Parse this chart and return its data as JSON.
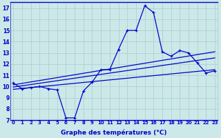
{
  "xlabel": "Graphe des températures (°C)",
  "background_color": "#cce8e8",
  "line_color": "#0000cc",
  "x_hours": [
    0,
    1,
    2,
    3,
    4,
    5,
    6,
    7,
    8,
    9,
    10,
    11,
    12,
    13,
    14,
    15,
    16,
    17,
    18,
    19,
    20,
    21,
    22,
    23
  ],
  "temp_main": [
    10.3,
    9.8,
    9.9,
    10.0,
    9.8,
    9.7,
    7.2,
    7.2,
    9.6,
    10.4,
    11.5,
    11.5,
    13.3,
    15.0,
    15.0,
    17.2,
    16.6,
    13.1,
    12.7,
    13.2,
    13.0,
    12.1,
    11.2,
    11.4
  ],
  "trend1_x": [
    0,
    23
  ],
  "trend1_y": [
    10.15,
    13.1
  ],
  "trend2_x": [
    0,
    23
  ],
  "trend2_y": [
    9.95,
    12.55
  ],
  "trend3_x": [
    0,
    23
  ],
  "trend3_y": [
    9.75,
    11.5
  ],
  "ylim_min": 7,
  "ylim_max": 17.5,
  "xlim_min": 0,
  "xlim_max": 23,
  "yticks": [
    7,
    8,
    9,
    10,
    11,
    12,
    13,
    14,
    15,
    16,
    17
  ],
  "xticks": [
    0,
    1,
    2,
    3,
    4,
    5,
    6,
    7,
    8,
    9,
    10,
    11,
    12,
    13,
    14,
    15,
    16,
    17,
    18,
    19,
    20,
    21,
    22,
    23
  ],
  "grid_color": "#aacccc",
  "tick_fontsize": 5,
  "xlabel_fontsize": 6.5
}
